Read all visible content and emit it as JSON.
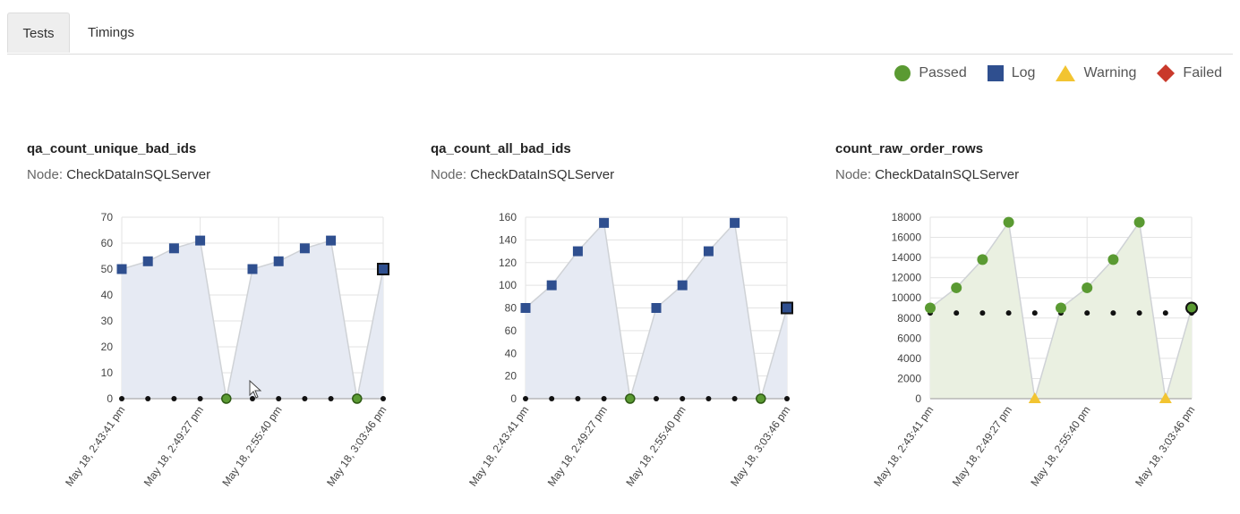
{
  "tabs": [
    {
      "label": "Tests",
      "active": true
    },
    {
      "label": "Timings",
      "active": false
    }
  ],
  "legend": [
    {
      "label": "Passed",
      "shape": "circle",
      "color": "#5a9a32"
    },
    {
      "label": "Log",
      "shape": "square",
      "color": "#2f4f8f"
    },
    {
      "label": "Warning",
      "shape": "triangle",
      "color": "#f2c431"
    },
    {
      "label": "Failed",
      "shape": "diamond",
      "color": "#c9392b"
    }
  ],
  "panels": [
    {
      "title": "qa_count_unique_bad_ids",
      "node_label": "Node:",
      "node_value": "CheckDataInSQLServer"
    },
    {
      "title": "qa_count_all_bad_ids",
      "node_label": "Node:",
      "node_value": "CheckDataInSQLServer"
    },
    {
      "title": "count_raw_order_rows",
      "node_label": "Node:",
      "node_value": "CheckDataInSQLServer"
    }
  ],
  "chart_data": [
    {
      "type": "area",
      "x_tick_labels": [
        "May 18, 2:43:41 pm",
        "May 18, 2:49:27 pm",
        "May 18, 2:55:40 pm",
        "May 18, 3:03:46 pm"
      ],
      "ylim": [
        0,
        70
      ],
      "yticks": [
        0,
        10,
        20,
        30,
        40,
        50,
        60,
        70
      ],
      "grid": true,
      "fill": "#e6eaf3",
      "series": [
        {
          "values": [
            50,
            53,
            58,
            61,
            0,
            50,
            53,
            58,
            61,
            0,
            50
          ],
          "status": [
            "Log",
            "Log",
            "Log",
            "Log",
            "Passed",
            "Log",
            "Log",
            "Log",
            "Log",
            "Passed",
            "Log"
          ]
        },
        {
          "values": [
            0,
            0,
            0,
            0,
            0,
            0,
            0,
            0,
            0,
            0,
            0
          ],
          "style": "dots"
        }
      ]
    },
    {
      "type": "area",
      "x_tick_labels": [
        "May 18, 2:43:41 pm",
        "May 18, 2:49:27 pm",
        "May 18, 2:55:40 pm",
        "May 18, 3:03:46 pm"
      ],
      "ylim": [
        0,
        160
      ],
      "yticks": [
        0,
        20,
        40,
        60,
        80,
        100,
        120,
        140,
        160
      ],
      "grid": true,
      "fill": "#e6eaf3",
      "series": [
        {
          "values": [
            80,
            100,
            130,
            155,
            0,
            80,
            100,
            130,
            155,
            0,
            80
          ],
          "status": [
            "Log",
            "Log",
            "Log",
            "Log",
            "Passed",
            "Log",
            "Log",
            "Log",
            "Log",
            "Passed",
            "Log"
          ]
        },
        {
          "values": [
            0,
            0,
            0,
            0,
            0,
            0,
            0,
            0,
            0,
            0,
            0
          ],
          "style": "dots"
        }
      ]
    },
    {
      "type": "area",
      "x_tick_labels": [
        "May 18, 2:43:41 pm",
        "May 18, 2:49:27 pm",
        "May 18, 2:55:40 pm",
        "May 18, 3:03:46 pm"
      ],
      "ylim": [
        0,
        18000
      ],
      "yticks": [
        0,
        2000,
        4000,
        6000,
        8000,
        10000,
        12000,
        14000,
        16000,
        18000
      ],
      "grid": true,
      "fill": "#eaf0e1",
      "series": [
        {
          "values": [
            9000,
            11000,
            13800,
            17500,
            0,
            9000,
            11000,
            13800,
            17500,
            0,
            9000
          ],
          "status": [
            "Passed",
            "Passed",
            "Passed",
            "Passed",
            "Warning",
            "Passed",
            "Passed",
            "Passed",
            "Passed",
            "Warning",
            "Passed"
          ]
        },
        {
          "values": [
            8500,
            8500,
            8500,
            8500,
            8500,
            8500,
            8500,
            8500,
            8500,
            8500,
            8500
          ],
          "style": "dots"
        }
      ]
    }
  ]
}
